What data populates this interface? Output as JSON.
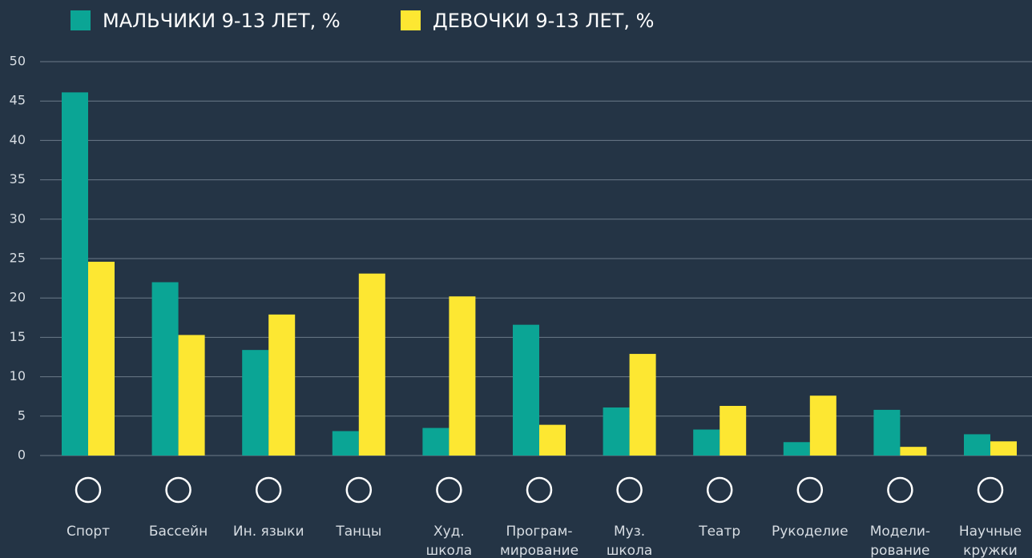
{
  "chart_data": {
    "type": "bar",
    "categories": [
      [
        "Спорт"
      ],
      [
        "Бассейн"
      ],
      [
        "Ин. языки"
      ],
      [
        "Танцы"
      ],
      [
        "Худ.",
        "школа"
      ],
      [
        "Програм-",
        "мирование"
      ],
      [
        "Муз.",
        "школа"
      ],
      [
        "Театр"
      ],
      [
        "Рукоделие"
      ],
      [
        "Модели-",
        "рование"
      ],
      [
        "Научные",
        "кружки"
      ]
    ],
    "series": [
      {
        "name": "МАЛЬЧИКИ 9-13 ЛЕТ, %",
        "color": "#0ba595",
        "values": [
          46.1,
          22,
          13.4,
          3.1,
          3.5,
          16.6,
          6.1,
          3.3,
          1.7,
          5.8,
          2.7
        ]
      },
      {
        "name": "ДЕВОЧКИ 9-13 ЛЕТ, %",
        "color": "#fde732",
        "values": [
          24.6,
          15.3,
          17.9,
          23.1,
          20.2,
          3.9,
          12.9,
          6.3,
          7.6,
          1.1,
          1.8
        ]
      }
    ],
    "ylim": [
      0,
      50
    ],
    "yticks": [
      0,
      5,
      10,
      15,
      20,
      25,
      30,
      35,
      40,
      45,
      50
    ],
    "grid": true
  }
}
